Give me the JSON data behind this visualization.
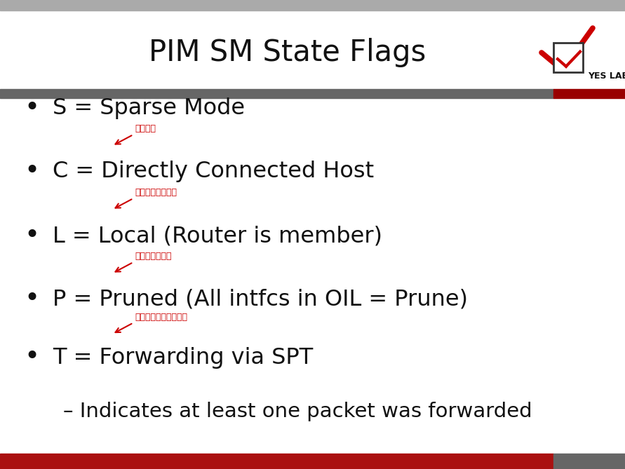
{
  "title": "PIM SM State Flags",
  "title_fontsize": 30,
  "title_color": "#111111",
  "background_color": "#ffffff",
  "header_bar_color": "#666666",
  "header_bar_red": "#990000",
  "bullet_items": [
    "S = Sparse Mode",
    "C = Directly Connected Host",
    "L = Local (Router is member)",
    "P = Pruned (All intfcs in OIL = Prune)",
    "T = Forwarding via SPT"
  ],
  "sub_item": "– Indicates at least one packet was forwarded",
  "annotation_texts": [
    "有接收者",
    "本路由器是接收者",
    "需要删除此表项",
    "至少转发过一个数据包"
  ],
  "bullet_fontsize": 23,
  "sub_fontsize": 21,
  "annotation_fontsize": 9,
  "bullet_color": "#111111",
  "annotation_color": "#cc0000",
  "bottom_bar_red": "#aa1111",
  "bottom_bar_gray": "#666666",
  "yes_lab_text": "YES LAB",
  "top_noise_color": "#aaaaaa"
}
